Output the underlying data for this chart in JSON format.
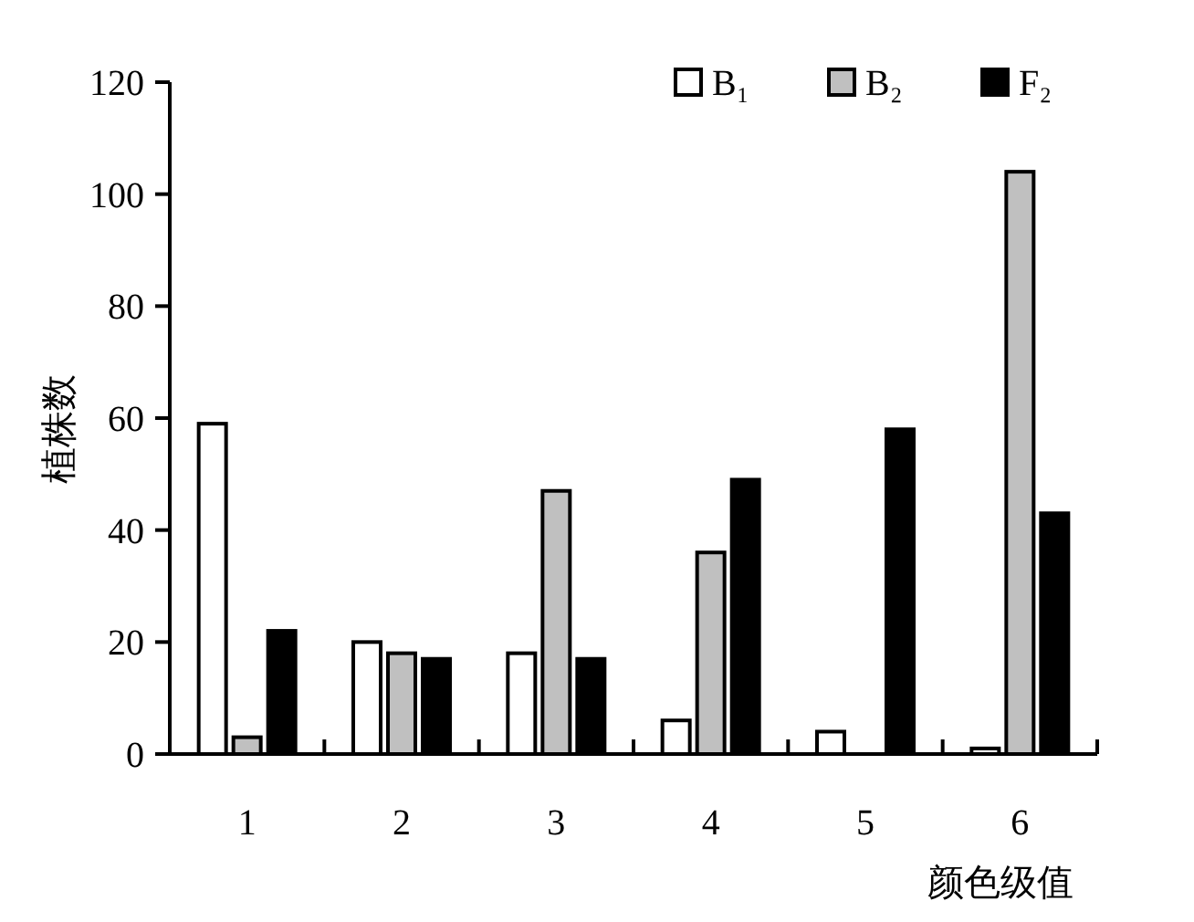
{
  "chart_data": {
    "type": "bar",
    "xlabel": "颜色级值",
    "ylabel": "植株数",
    "categories": [
      "1",
      "2",
      "3",
      "4",
      "5",
      "6"
    ],
    "series": [
      {
        "name": "B₁",
        "color": "#ffffff",
        "values": [
          59,
          20,
          18,
          6,
          4,
          1
        ]
      },
      {
        "name": "B₂",
        "color": "#c0c0c0",
        "values": [
          3,
          18,
          47,
          36,
          0,
          104
        ]
      },
      {
        "name": "F₂",
        "color": "#000000",
        "values": [
          22,
          17,
          17,
          49,
          58,
          43
        ]
      }
    ],
    "ylim": [
      0,
      120
    ],
    "yticks": [
      0,
      20,
      40,
      60,
      80,
      100,
      120
    ],
    "grid": false,
    "legend": "top right"
  }
}
